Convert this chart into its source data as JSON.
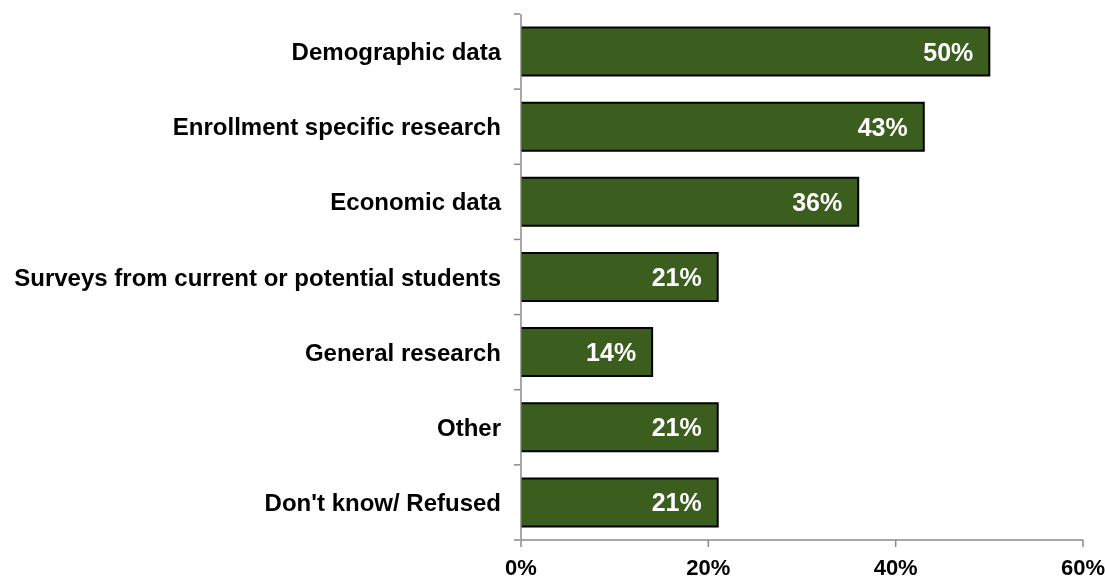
{
  "chart_data": {
    "type": "bar",
    "orientation": "horizontal",
    "categories": [
      "Demographic data",
      "Enrollment specific research",
      "Economic data",
      "Surveys from current or potential students",
      "General research",
      "Other",
      "Don't know/ Refused"
    ],
    "values": [
      50,
      43,
      36,
      21,
      14,
      21,
      21
    ],
    "value_labels": [
      "50%",
      "43%",
      "36%",
      "21%",
      "14%",
      "21%",
      "21%"
    ],
    "color": "#3b5e1f",
    "xlim": [
      0,
      60
    ],
    "xticks": [
      {
        "value": 0,
        "label": "0%"
      },
      {
        "value": 20,
        "label": "20%"
      },
      {
        "value": 40,
        "label": "40%"
      },
      {
        "value": 60,
        "label": "60%"
      }
    ]
  }
}
